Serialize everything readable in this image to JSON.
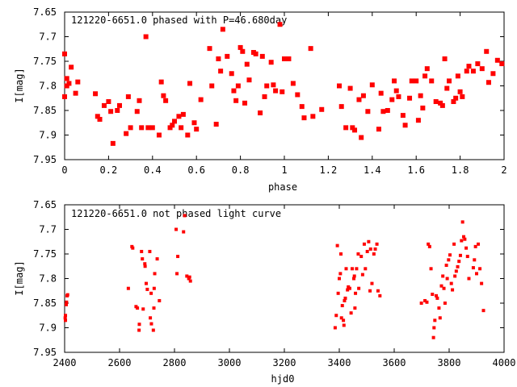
{
  "chart_data": [
    {
      "type": "scatter",
      "title": "121220-6651.0 phased with P=46.680day",
      "xlabel": "phase",
      "ylabel": "I[mag]",
      "xlim": [
        0,
        2
      ],
      "ylim": [
        7.65,
        7.95
      ],
      "y_inverted": true,
      "xticks": [
        "0",
        "0.2",
        "0.4",
        "0.6",
        "0.8",
        "1",
        "1.2",
        "1.4",
        "1.6",
        "1.8",
        "2"
      ],
      "yticks": [
        "7.65",
        "7.7",
        "7.75",
        "7.8",
        "7.85",
        "7.9",
        "7.95"
      ],
      "grid": false,
      "marker_color": "#ff0000",
      "series": [
        {
          "x": [
            0.0,
            0.0,
            0.01,
            0.01,
            0.02,
            0.03,
            0.05,
            0.06,
            0.14,
            0.15,
            0.16,
            0.18,
            0.2,
            0.21,
            0.22,
            0.24,
            0.25,
            0.28,
            0.29,
            0.3,
            0.33,
            0.34,
            0.35,
            0.37,
            0.38,
            0.4,
            0.43,
            0.44,
            0.45,
            0.46,
            0.48,
            0.49,
            0.5,
            0.52,
            0.53,
            0.54,
            0.56,
            0.57,
            0.59,
            0.6,
            0.62,
            0.66,
            0.67,
            0.69,
            0.7,
            0.71,
            0.72,
            0.74,
            0.76,
            0.77,
            0.78,
            0.79,
            0.8,
            0.81,
            0.82,
            0.83,
            0.84,
            0.86,
            0.87,
            0.89,
            0.9,
            0.91,
            0.92,
            0.94,
            0.95,
            0.96,
            0.98,
            0.99,
            1.0,
            1.02,
            1.04,
            1.06,
            1.08,
            1.09,
            1.12,
            1.13,
            1.17,
            1.25,
            1.26,
            1.28,
            1.3,
            1.31,
            1.32,
            1.34,
            1.35,
            1.36,
            1.38,
            1.4,
            1.43,
            1.44,
            1.45,
            1.47,
            1.49,
            1.5,
            1.51,
            1.52,
            1.54,
            1.55,
            1.57,
            1.58,
            1.6,
            1.61,
            1.62,
            1.63,
            1.64,
            1.65,
            1.67,
            1.69,
            1.71,
            1.72,
            1.73,
            1.74,
            1.75,
            1.77,
            1.78,
            1.79,
            1.8,
            1.81,
            1.83,
            1.84,
            1.86,
            1.88,
            1.9,
            1.92,
            1.93,
            1.95,
            1.97,
            1.99
          ],
          "y": [
            7.735,
            7.822,
            7.785,
            7.8,
            7.795,
            7.762,
            7.815,
            7.792,
            7.816,
            7.862,
            7.868,
            7.84,
            7.832,
            7.852,
            7.917,
            7.85,
            7.84,
            7.897,
            7.822,
            7.885,
            7.852,
            7.83,
            7.885,
            7.7,
            7.885,
            7.885,
            7.9,
            7.792,
            7.82,
            7.83,
            7.885,
            7.88,
            7.872,
            7.862,
            7.885,
            7.858,
            7.9,
            7.795,
            7.875,
            7.888,
            7.828,
            7.724,
            7.8,
            7.878,
            7.745,
            7.77,
            7.685,
            7.74,
            7.775,
            7.81,
            7.83,
            7.8,
            7.722,
            7.73,
            7.835,
            7.756,
            7.788,
            7.732,
            7.735,
            7.855,
            7.74,
            7.822,
            7.8,
            7.752,
            7.798,
            7.81,
            7.675,
            7.812,
            7.745,
            7.745,
            7.795,
            7.818,
            7.842,
            7.865,
            7.724,
            7.862,
            7.848,
            7.8,
            7.842,
            7.885,
            7.805,
            7.885,
            7.89,
            7.828,
            7.905,
            7.82,
            7.852,
            7.798,
            7.888,
            7.815,
            7.852,
            7.85,
            7.828,
            7.79,
            7.81,
            7.822,
            7.86,
            7.88,
            7.825,
            7.79,
            7.79,
            7.87,
            7.82,
            7.845,
            7.78,
            7.765,
            7.79,
            7.832,
            7.835,
            7.84,
            7.745,
            7.805,
            7.79,
            7.832,
            7.825,
            7.78,
            7.812,
            7.822,
            7.77,
            7.76,
            7.77,
            7.755,
            7.765,
            7.73,
            7.793,
            7.775,
            7.748,
            7.755
          ],
          "mirror_x": [
            0.0,
            0.0,
            1.99
          ]
        }
      ]
    },
    {
      "type": "scatter",
      "title": "121220-6651.0 not phased light curve",
      "xlabel": "hjd0",
      "ylabel": "I[mag]",
      "xlim": [
        2400,
        4000
      ],
      "ylim": [
        7.65,
        7.95
      ],
      "y_inverted": true,
      "xticks": [
        "2400",
        "2600",
        "2800",
        "3000",
        "3200",
        "3400",
        "3600",
        "3800",
        "4000"
      ],
      "yticks": [
        "7.65",
        "7.7",
        "7.75",
        "7.8",
        "7.85",
        "7.9",
        "7.95"
      ],
      "grid": false,
      "marker_color": "#ff0000",
      "series": [
        {
          "x": [
            2402,
            2403,
            2403,
            2406,
            2407,
            2409,
            2411,
            2632,
            2645,
            2648,
            2660,
            2665,
            2671,
            2672,
            2680,
            2683,
            2686,
            2692,
            2693,
            2697,
            2701,
            2710,
            2712,
            2715,
            2716,
            2723,
            2725,
            2726,
            2728,
            2737,
            2745,
            2806,
            2809,
            2812,
            2833,
            2837,
            2845,
            2852,
            2855,
            2858,
            3385,
            3389,
            3393,
            3396,
            3400,
            3404,
            3406,
            3408,
            3411,
            3415,
            3417,
            3419,
            3422,
            3425,
            3430,
            3433,
            3438,
            3443,
            3447,
            3453,
            3455,
            3457,
            3459,
            3463,
            3469,
            3471,
            3480,
            3485,
            3491,
            3495,
            3502,
            3507,
            3512,
            3514,
            3519,
            3526,
            3531,
            3537,
            3541,
            3548,
            3699,
            3712,
            3719,
            3724,
            3729,
            3734,
            3739,
            3743,
            3745,
            3748,
            3753,
            3757,
            3763,
            3767,
            3772,
            3777,
            3781,
            3785,
            3790,
            3793,
            3798,
            3803,
            3808,
            3812,
            3818,
            3821,
            3826,
            3831,
            3836,
            3841,
            3845,
            3849,
            3853,
            3857,
            3862,
            3867,
            3872,
            3888,
            3892,
            3896,
            3900,
            3906,
            3912,
            3918,
            3925
          ],
          "y": [
            7.88,
            7.885,
            7.875,
            7.853,
            7.848,
            7.835,
            7.833,
            7.82,
            7.735,
            7.738,
            7.857,
            7.86,
            7.905,
            7.893,
            7.745,
            7.76,
            7.862,
            7.77,
            7.775,
            7.81,
            7.822,
            7.745,
            7.88,
            7.83,
            7.892,
            7.905,
            7.86,
            7.82,
            7.79,
            7.76,
            7.845,
            7.7,
            7.79,
            7.755,
            7.705,
            7.672,
            7.795,
            7.8,
            7.797,
            7.805,
            7.9,
            7.875,
            7.733,
            7.83,
            7.8,
            7.79,
            7.75,
            7.88,
            7.855,
            7.885,
            7.895,
            7.845,
            7.84,
            7.78,
            7.823,
            7.817,
            7.82,
            7.87,
            7.78,
            7.8,
            7.795,
            7.86,
            7.83,
            7.78,
            7.75,
            7.82,
            7.755,
            7.792,
            7.73,
            7.78,
            7.745,
            7.725,
            7.825,
            7.74,
            7.81,
            7.75,
            7.74,
            7.73,
            7.825,
            7.835,
            7.85,
            7.845,
            7.848,
            7.73,
            7.735,
            7.78,
            7.832,
            7.92,
            7.9,
            7.885,
            7.835,
            7.84,
            7.86,
            7.88,
            7.815,
            7.795,
            7.82,
            7.85,
            7.773,
            7.8,
            7.762,
            7.752,
            7.81,
            7.823,
            7.73,
            7.795,
            7.785,
            7.776,
            7.765,
            7.753,
            7.723,
            7.685,
            7.715,
            7.72,
            7.738,
            7.755,
            7.8,
            7.778,
            7.762,
            7.735,
            7.79,
            7.73,
            7.78,
            7.81,
            7.865
          ]
        }
      ]
    }
  ]
}
